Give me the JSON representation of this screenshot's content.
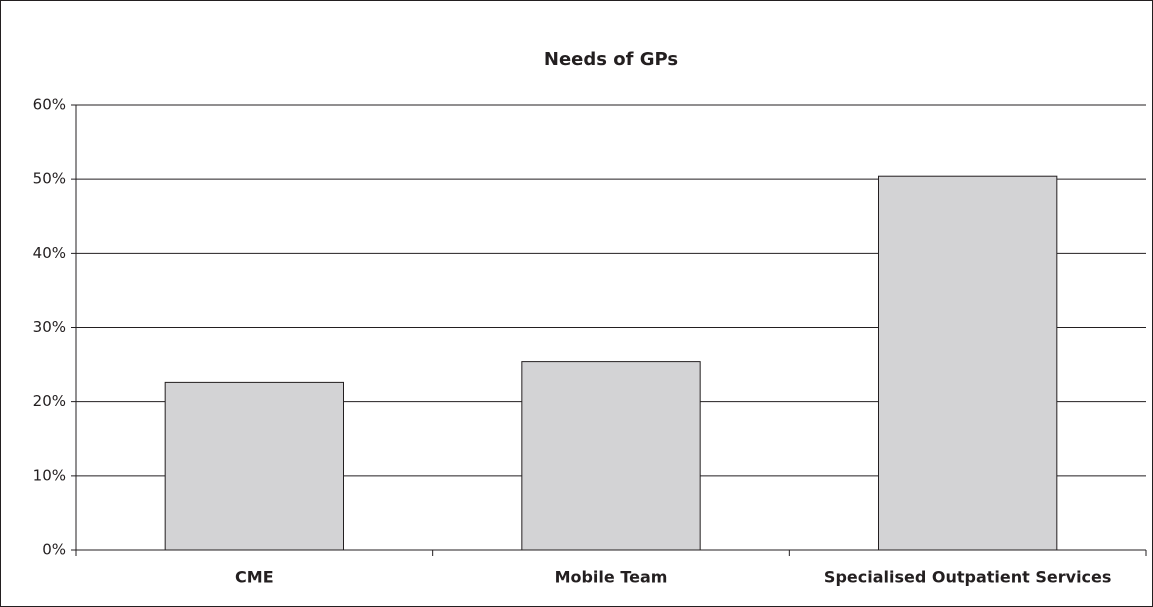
{
  "chart_data": {
    "type": "bar",
    "title": "Needs of GPs",
    "categories": [
      "CME",
      "Mobile Team",
      "Specialised Outpatient Services"
    ],
    "values": [
      22.6,
      25.4,
      50.4
    ],
    "color": "#d3d3d5",
    "ylim": [
      0,
      60
    ],
    "yticks": [
      {
        "value": 0,
        "label": "0%"
      },
      {
        "value": 10,
        "label": "10%"
      },
      {
        "value": 20,
        "label": "20%"
      },
      {
        "value": 30,
        "label": "30%"
      },
      {
        "value": 40,
        "label": "40%"
      },
      {
        "value": 50,
        "label": "50%"
      },
      {
        "value": 60,
        "label": "60%"
      }
    ],
    "grid": true
  }
}
